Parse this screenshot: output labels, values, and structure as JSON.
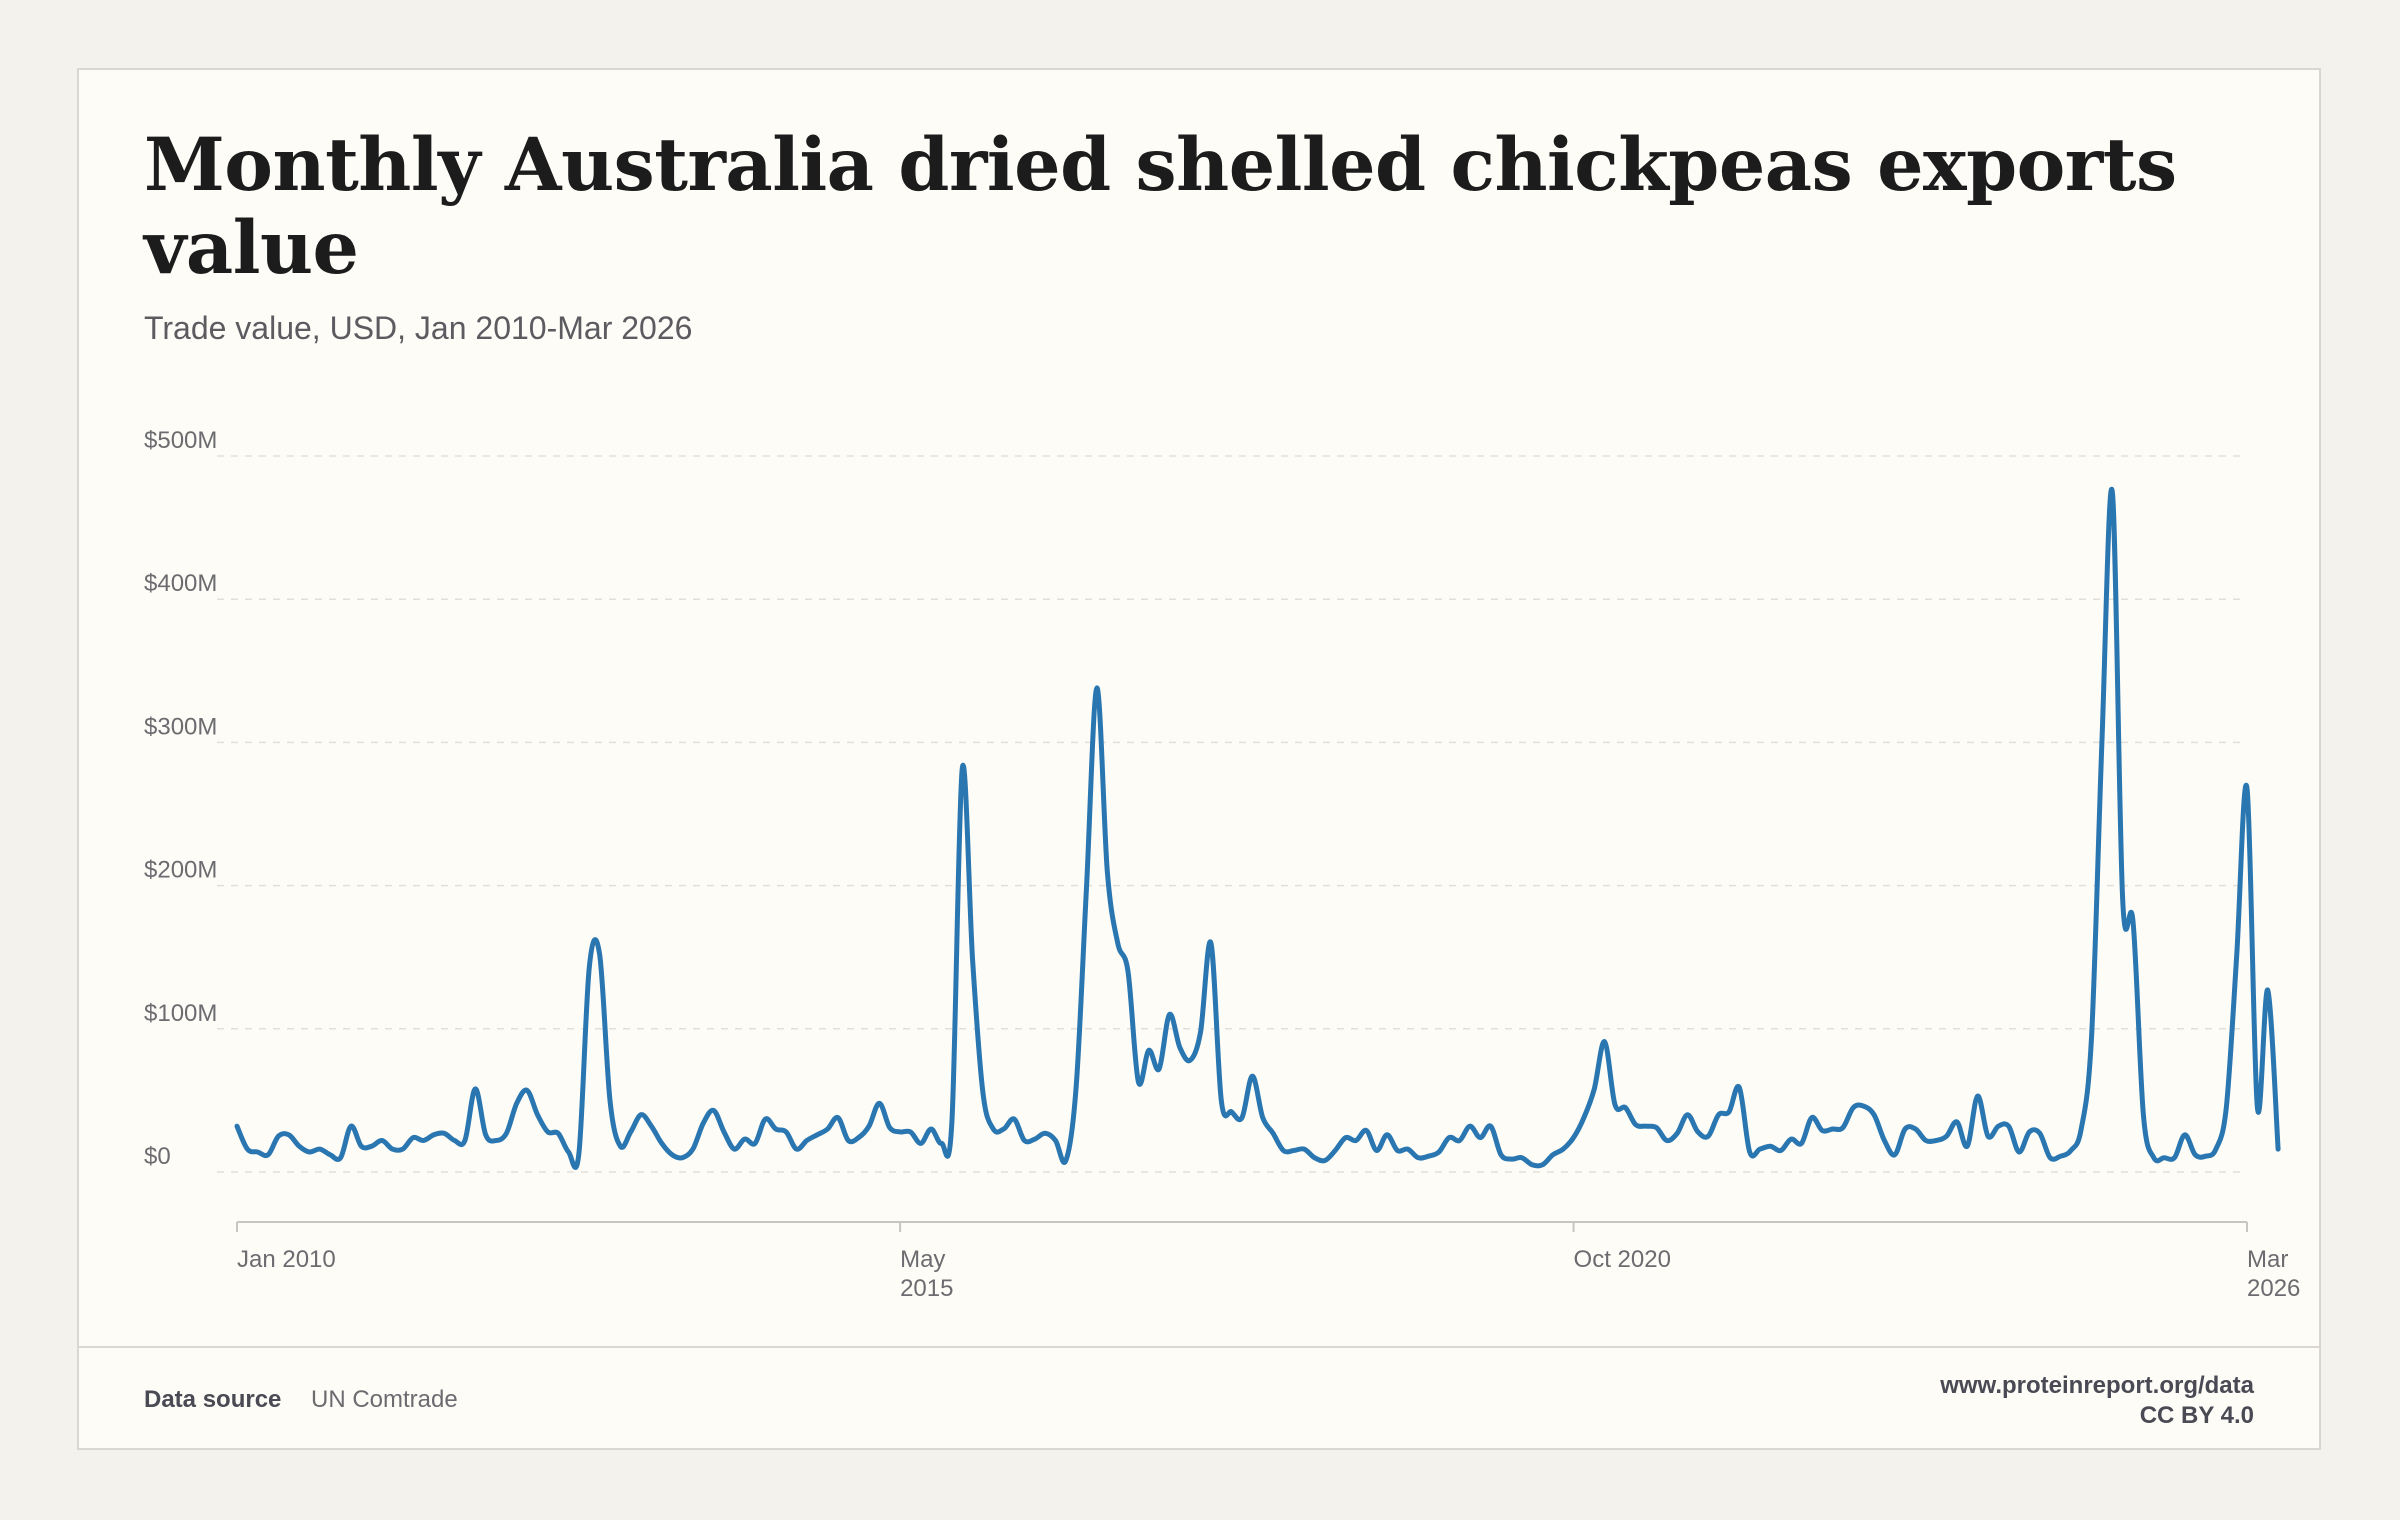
{
  "title": "Monthly Australia dried shelled chickpeas exports value",
  "subtitle": "Trade value, USD, Jan 2010-Mar 2026",
  "footer": {
    "source_label": "Data source",
    "source_value": "UN Comtrade",
    "site": "www.proteinreport.org/data",
    "license": "CC BY 4.0"
  },
  "colors": {
    "line": "#2a76b0",
    "grid": "#e2e0d8",
    "axis": "#c8c6be"
  },
  "chart_data": {
    "type": "line",
    "title": "Monthly Australia dried shelled chickpeas exports value",
    "subtitle": "Trade value, USD, Jan 2010-Mar 2026",
    "x_start": "2010-01",
    "x_end": "2026-03",
    "ylim": [
      0,
      500
    ],
    "y_unit": "USD millions",
    "y_ticks": [
      0,
      100,
      200,
      300,
      400,
      500
    ],
    "y_tick_labels": [
      "$0",
      "$100M",
      "$200M",
      "$300M",
      "$400M",
      "$500M"
    ],
    "x_ticks": [
      {
        "date": "2010-01",
        "lines": [
          "Jan 2010"
        ]
      },
      {
        "date": "2015-05",
        "lines": [
          "May",
          "2015"
        ]
      },
      {
        "date": "2020-10",
        "lines": [
          "Oct 2020"
        ]
      },
      {
        "date": "2026-03",
        "lines": [
          "Mar",
          "2026"
        ]
      }
    ],
    "grid": "horizontal-dashed",
    "legend": "none",
    "series": [
      {
        "values": [
          32,
          16,
          14,
          12,
          25,
          26,
          18,
          14,
          16,
          12,
          10,
          32,
          18,
          18,
          22,
          16,
          16,
          24,
          22,
          26,
          27,
          22,
          22,
          58,
          26,
          22,
          27,
          48,
          57,
          40,
          28,
          27,
          14,
          13,
          143,
          152,
          50,
          18,
          28,
          40,
          32,
          20,
          12,
          10,
          16,
          34,
          43,
          28,
          16,
          23,
          20,
          37,
          30,
          28,
          16,
          22,
          26,
          30,
          38,
          22,
          24,
          32,
          48,
          31,
          28,
          28,
          20,
          30,
          20,
          35,
          282,
          148,
          55,
          30,
          30,
          37,
          22,
          23,
          27,
          22,
          8,
          60,
          200,
          338,
          210,
          160,
          140,
          63,
          85,
          72,
          110,
          87,
          78,
          98,
          160,
          50,
          42,
          38,
          67,
          38,
          27,
          15,
          15,
          16,
          10,
          8,
          15,
          24,
          22,
          29,
          15,
          26,
          15,
          16,
          10,
          11,
          14,
          24,
          22,
          32,
          24,
          32,
          12,
          9,
          10,
          5,
          5,
          12,
          16,
          24,
          38,
          58,
          91,
          47,
          45,
          33,
          32,
          31,
          22,
          27,
          40,
          28,
          25,
          40,
          42,
          59,
          14,
          16,
          18,
          15,
          23,
          20,
          38,
          29,
          30,
          31,
          45,
          46,
          40,
          22,
          12,
          30,
          30,
          22,
          22,
          25,
          35,
          18,
          53,
          25,
          32,
          32,
          14,
          28,
          27,
          10,
          11,
          15,
          30,
          95,
          300,
          475,
          190,
          175,
          40,
          10,
          10,
          10,
          26,
          12,
          11,
          16,
          45,
          150,
          268,
          45,
          127,
          16
        ]
      }
    ]
  }
}
